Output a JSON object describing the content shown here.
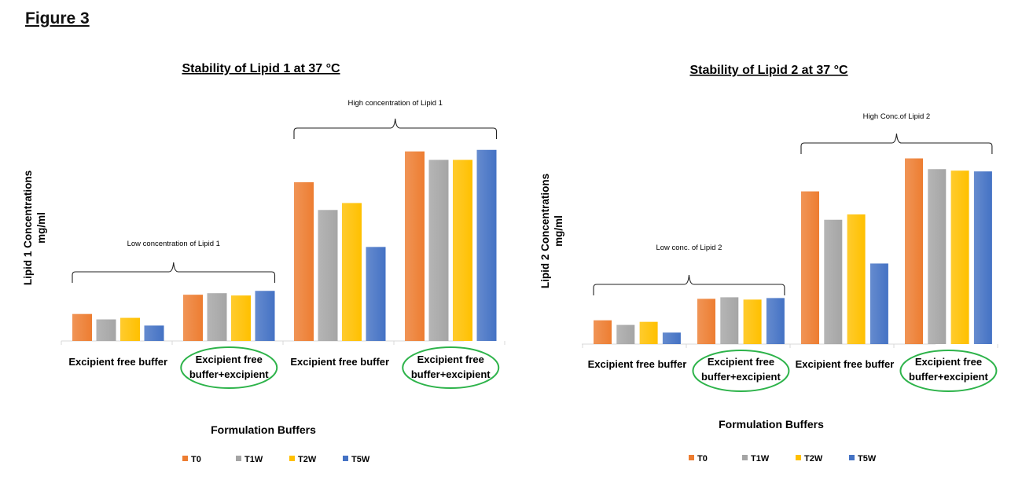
{
  "figure_label": "Figure 3",
  "legend_items": [
    "T0",
    "T1W",
    "T2W",
    "T5W"
  ],
  "colors": {
    "T0": "#ed7d31",
    "T1W": "#a5a5a5",
    "T2W": "#ffc000",
    "T5W": "#4472c4",
    "highlight": "#2db34a"
  },
  "chart_data": [
    {
      "type": "bar",
      "title": "Stability of Lipid 1 at 37 °C",
      "ylabel": "Lipid 1 Concentrations mg/ml",
      "ylabel_lines": [
        "Lipid 1 Concentrations",
        "mg/ml"
      ],
      "xlabel": "Formulation Buffers",
      "categories": [
        "Excipient free buffer",
        "Excipient free buffer+excipient",
        "Excipient free buffer",
        "Excipient free buffer+excipient"
      ],
      "category_lines": [
        [
          "Excipient free buffer"
        ],
        [
          "Excipient free",
          "buffer+excipient"
        ],
        [
          "Excipient free buffer"
        ],
        [
          "Excipient free",
          "buffer+excipient"
        ]
      ],
      "highlighted_categories": [
        1,
        3
      ],
      "series": [
        {
          "name": "T0",
          "values": [
            35,
            60,
            206,
            246
          ]
        },
        {
          "name": "T1W",
          "values": [
            28,
            62,
            170,
            235
          ]
        },
        {
          "name": "T2W",
          "values": [
            30,
            59,
            179,
            235
          ]
        },
        {
          "name": "T5W",
          "values": [
            20,
            65,
            122,
            248
          ]
        }
      ],
      "ylim": [
        0,
        260
      ],
      "annotations": [
        {
          "text": "Low concentration of Lipid 1",
          "spans_categories": [
            0,
            1
          ]
        },
        {
          "text": "High concentration of Lipid 1",
          "spans_categories": [
            2,
            3
          ]
        }
      ]
    },
    {
      "type": "bar",
      "title": "Stability of Lipid 2 at 37 °C",
      "ylabel": "Lipid 2 Concentrations mg/ml",
      "ylabel_lines": [
        "Lipid 2 Concentrations",
        "mg/ml"
      ],
      "xlabel": "Formulation Buffers",
      "categories": [
        "Excipient free buffer",
        "Excipient free buffer+excipient",
        "Excipient free buffer",
        "Excipient free buffer+excipient"
      ],
      "category_lines": [
        [
          "Excipient free buffer"
        ],
        [
          "Excipient free",
          "buffer+excipient"
        ],
        [
          "Excipient free buffer"
        ],
        [
          "Excipient free",
          "buffer+excipient"
        ]
      ],
      "highlighted_categories": [
        1,
        3
      ],
      "series": [
        {
          "name": "T0",
          "values": [
            31,
            59,
            199,
            242
          ]
        },
        {
          "name": "T1W",
          "values": [
            25,
            61,
            162,
            228
          ]
        },
        {
          "name": "T2W",
          "values": [
            29,
            58,
            169,
            226
          ]
        },
        {
          "name": "T5W",
          "values": [
            15,
            60,
            105,
            225
          ]
        }
      ],
      "ylim": [
        0,
        260
      ],
      "annotations": [
        {
          "text": "Low conc. of Lipid 2",
          "spans_categories": [
            0,
            1
          ]
        },
        {
          "text": "High Conc.of Lipid 2",
          "spans_categories": [
            2,
            3
          ]
        }
      ]
    }
  ]
}
